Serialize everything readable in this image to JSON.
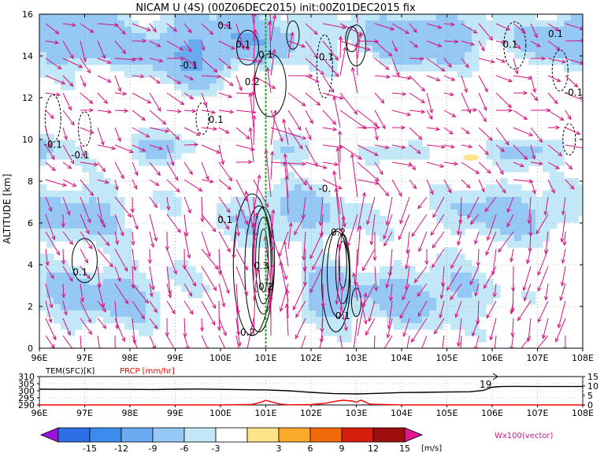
{
  "title": "NICAM U (4S) (00Z06DEC2015) init:00Z01DEC2015 fix",
  "chart_data": [
    {
      "type": "heatmap",
      "name": "zonal-wind-cross-section",
      "ylabel": "ALTITUDE [km]",
      "x_ticks": [
        "96E",
        "97E",
        "98E",
        "99E",
        "100E",
        "101E",
        "102E",
        "103E",
        "104E",
        "105E",
        "106E",
        "107E",
        "108E"
      ],
      "y_ticks": [
        "0",
        "2",
        "4",
        "6",
        "8",
        "10",
        "12",
        "14",
        "16"
      ],
      "xlim": [
        96,
        108
      ],
      "ylim": [
        0,
        16
      ],
      "grid": true,
      "marker_longitude": 101,
      "contour_labels": [
        {
          "text": "0.1",
          "lon": 100.1,
          "alt": 15.3
        },
        {
          "text": "0.1",
          "lon": 100.5,
          "alt": 14.4
        },
        {
          "text": "-0.1",
          "lon": 99.3,
          "alt": 13.4
        },
        {
          "text": "0.1",
          "lon": 101.0,
          "alt": 13.9
        },
        {
          "text": "-0.1",
          "lon": 102.3,
          "alt": 13.8
        },
        {
          "text": "0.2",
          "lon": 100.7,
          "alt": 12.6
        },
        {
          "text": "0.1",
          "lon": 99.9,
          "alt": 10.8
        },
        {
          "text": "-0.1",
          "lon": 96.3,
          "alt": 9.6
        },
        {
          "text": "-0.1",
          "lon": 96.9,
          "alt": 9.1
        },
        {
          "text": "0.1",
          "lon": 106.4,
          "alt": 14.4
        },
        {
          "text": "0.1",
          "lon": 107.4,
          "alt": 14.9
        },
        {
          "text": "-0.1",
          "lon": 107.8,
          "alt": 12.1
        },
        {
          "text": "-0.",
          "lon": 102.3,
          "alt": 7.5
        },
        {
          "text": "0.1",
          "lon": 100.1,
          "alt": 6.0
        },
        {
          "text": "0.2",
          "lon": 102.6,
          "alt": 5.4
        },
        {
          "text": "0.1",
          "lon": 96.9,
          "alt": 3.5
        },
        {
          "text": "0.3",
          "lon": 100.9,
          "alt": 3.8
        },
        {
          "text": "0.2",
          "lon": 101.0,
          "alt": 2.8
        },
        {
          "text": "0.1",
          "lon": 102.7,
          "alt": 1.4
        },
        {
          "text": "0.2",
          "lon": 100.6,
          "alt": 0.6
        }
      ]
    },
    {
      "type": "line",
      "name": "surface-timeseries",
      "label_left": "TEM(SFC)[K]",
      "label_right": "PRCP [mm/hr]",
      "left_ticks": [
        "310",
        "305",
        "300",
        "295",
        "290"
      ],
      "left_range": [
        290,
        310
      ],
      "right_ticks": [
        "15",
        "10",
        "5",
        "0"
      ],
      "right_range": [
        0,
        15
      ],
      "x_ticks": [
        "96E",
        "97E",
        "98E",
        "99E",
        "100E",
        "101E",
        "102E",
        "103E",
        "104E",
        "105E",
        "106E",
        "107E",
        "108E"
      ],
      "annotation": "19",
      "series": [
        {
          "name": "TEM(SFC)[K]",
          "color": "#000000",
          "axis": "left",
          "x": [
            96,
            96.5,
            97,
            97.5,
            98,
            98.5,
            99,
            99.5,
            100,
            100.5,
            101,
            101.5,
            102,
            102.2,
            102.5,
            102.8,
            103,
            103.3,
            103.6,
            104,
            104.5,
            105,
            105.5,
            105.8,
            106,
            106.2,
            106.5,
            107,
            107.5,
            108
          ],
          "y": [
            301.1,
            301.0,
            301.1,
            301.0,
            301.0,
            300.9,
            301.1,
            301.2,
            301.0,
            300.8,
            300.6,
            300.0,
            298.9,
            298.5,
            298.0,
            297.9,
            297.8,
            298.0,
            298.3,
            298.7,
            298.9,
            299.1,
            299.3,
            300.2,
            302.5,
            303.0,
            303.1,
            303.0,
            303.0,
            303.0
          ]
        },
        {
          "name": "PRCP [mm/hr]",
          "color": "#ff0000",
          "axis": "right",
          "x": [
            96,
            100,
            100.7,
            100.9,
            101.0,
            101.1,
            101.3,
            101.5,
            102,
            102.3,
            102.5,
            102.7,
            102.9,
            103.0,
            103.1,
            103.3,
            104,
            108
          ],
          "y": [
            0,
            0,
            0.3,
            1.5,
            2.4,
            1.8,
            0.5,
            0.1,
            0.2,
            0.8,
            1.8,
            2.5,
            2.1,
            1.4,
            2.6,
            0.4,
            0,
            0
          ]
        }
      ]
    },
    {
      "type": "table",
      "name": "colorbar",
      "tick_labels": [
        "-15",
        "-12",
        "-9",
        "-6",
        "-3",
        "3",
        "6",
        "9",
        "12",
        "15"
      ],
      "unit": "[m/s]",
      "colors": [
        "#9a14d8",
        "#2d6fe6",
        "#3c8cec",
        "#6aaaf0",
        "#96c8f5",
        "#c2e8f7",
        "#ffffff",
        "#fde38a",
        "#fba92b",
        "#f26a0c",
        "#d41f0f",
        "#9f0e0e",
        "#e0168f"
      ]
    }
  ],
  "vector_label": "Wx100(vector)"
}
